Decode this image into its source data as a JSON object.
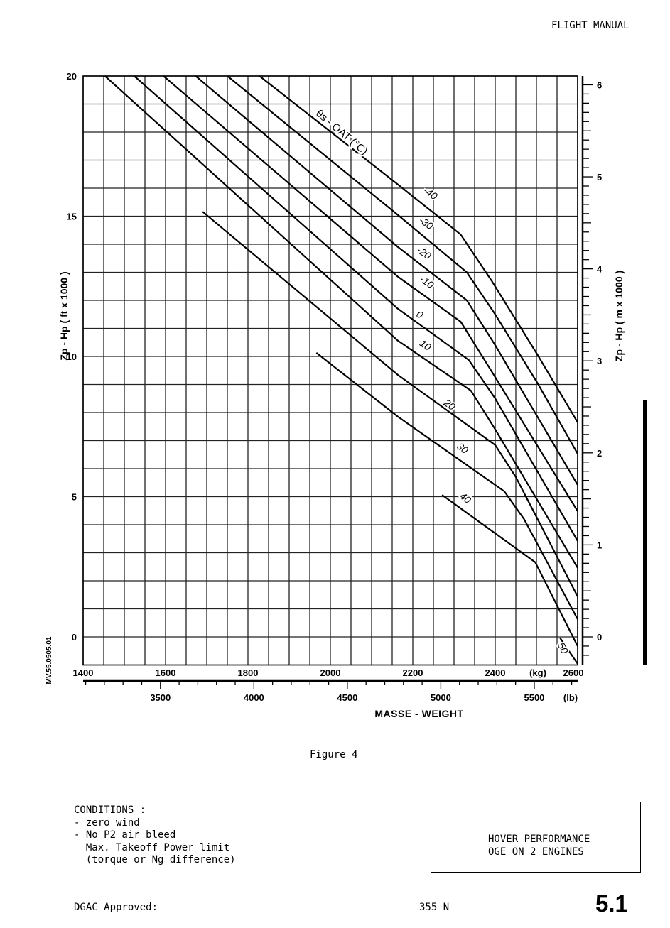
{
  "header": {
    "title": "FLIGHT MANUAL"
  },
  "figure_caption": "Figure 4",
  "conditions": {
    "heading": "CONDITIONS",
    "heading_suffix": " :",
    "lines": [
      "- zero wind",
      "- No P2 air bleed",
      "  Max. Takeoff Power limit",
      "  (torque or Ng difference)"
    ]
  },
  "title_box": {
    "line1": "HOVER PERFORMANCE",
    "line2": "OGE ON 2 ENGINES"
  },
  "footer": {
    "approval": "DGAC Approved:",
    "page_code": "355 N",
    "section": "5.1"
  },
  "reference_code": "MV.55.0505.01",
  "chart_data": {
    "type": "line",
    "xlabel": "MASSE - WEIGHT",
    "x_unit_kg": "(kg)",
    "x_unit_lb": "(lb)",
    "ylabel_left": "Zp - Hp ( ft x 1000 )",
    "ylabel_right": "Zp - Hp ( m x 1000 )",
    "family_label": "θs - OAT (°C)",
    "xlim_kg": [
      1400,
      2600
    ],
    "ylim_ft_x1000": [
      -1,
      20
    ],
    "x_ticks_kg": [
      "1400",
      "1600",
      "1800",
      "2000",
      "2200",
      "2400",
      "2600"
    ],
    "x_ticks_lb": [
      "3500",
      "4000",
      "4500",
      "5000",
      "5500"
    ],
    "y_ticks_left": [
      "0",
      "5",
      "10",
      "15",
      "20"
    ],
    "y_ticks_right": [
      "0",
      "1",
      "2",
      "3",
      "4",
      "5",
      "6"
    ],
    "grid": true,
    "line_color": "#000000",
    "series": [
      {
        "name": "-40",
        "points": [
          [
            1828,
            20
          ],
          [
            2164,
            16.13
          ],
          [
            2316,
            14.35
          ],
          [
            2393,
            12.66
          ],
          [
            2503,
            10.05
          ],
          [
            2600,
            7.65
          ]
        ]
      },
      {
        "name": "-30",
        "points": [
          [
            1750,
            20
          ],
          [
            2164,
            15.04
          ],
          [
            2331,
            13.0
          ],
          [
            2400,
            11.5
          ],
          [
            2503,
            9.04
          ],
          [
            2600,
            6.53
          ]
        ]
      },
      {
        "name": "-20",
        "points": [
          [
            1673,
            20
          ],
          [
            2164,
            13.9
          ],
          [
            2331,
            12.0
          ],
          [
            2400,
            10.4
          ],
          [
            2600,
            5.42
          ]
        ]
      },
      {
        "name": "-10",
        "points": [
          [
            1595,
            20
          ],
          [
            2164,
            12.84
          ],
          [
            2316,
            11.24
          ],
          [
            2390,
            9.5
          ],
          [
            2600,
            4.48
          ]
        ]
      },
      {
        "name": "0",
        "points": [
          [
            1524,
            20
          ],
          [
            2164,
            11.7
          ],
          [
            2336,
            9.87
          ],
          [
            2400,
            8.5
          ],
          [
            2600,
            3.42
          ]
        ]
      },
      {
        "name": "10",
        "points": [
          [
            1453,
            20
          ],
          [
            2164,
            10.56
          ],
          [
            2341,
            8.78
          ],
          [
            2400,
            7.4
          ],
          [
            2600,
            2.46
          ]
        ]
      },
      {
        "name": "20",
        "points": [
          [
            1690,
            15.16
          ],
          [
            2164,
            9.34
          ],
          [
            2400,
            6.84
          ],
          [
            2450,
            5.7
          ],
          [
            2600,
            1.44
          ]
        ]
      },
      {
        "name": "30",
        "points": [
          [
            1966,
            10.13
          ],
          [
            2164,
            7.85
          ],
          [
            2422,
            5.19
          ],
          [
            2470,
            4.2
          ],
          [
            2600,
            0.63
          ]
        ]
      },
      {
        "name": "40",
        "points": [
          [
            2271,
            5.06
          ],
          [
            2497,
            2.66
          ],
          [
            2600,
            -0.33
          ]
        ]
      },
      {
        "name": "50",
        "points": [
          [
            2557,
            -0.03
          ],
          [
            2600,
            -0.96
          ]
        ]
      }
    ]
  }
}
